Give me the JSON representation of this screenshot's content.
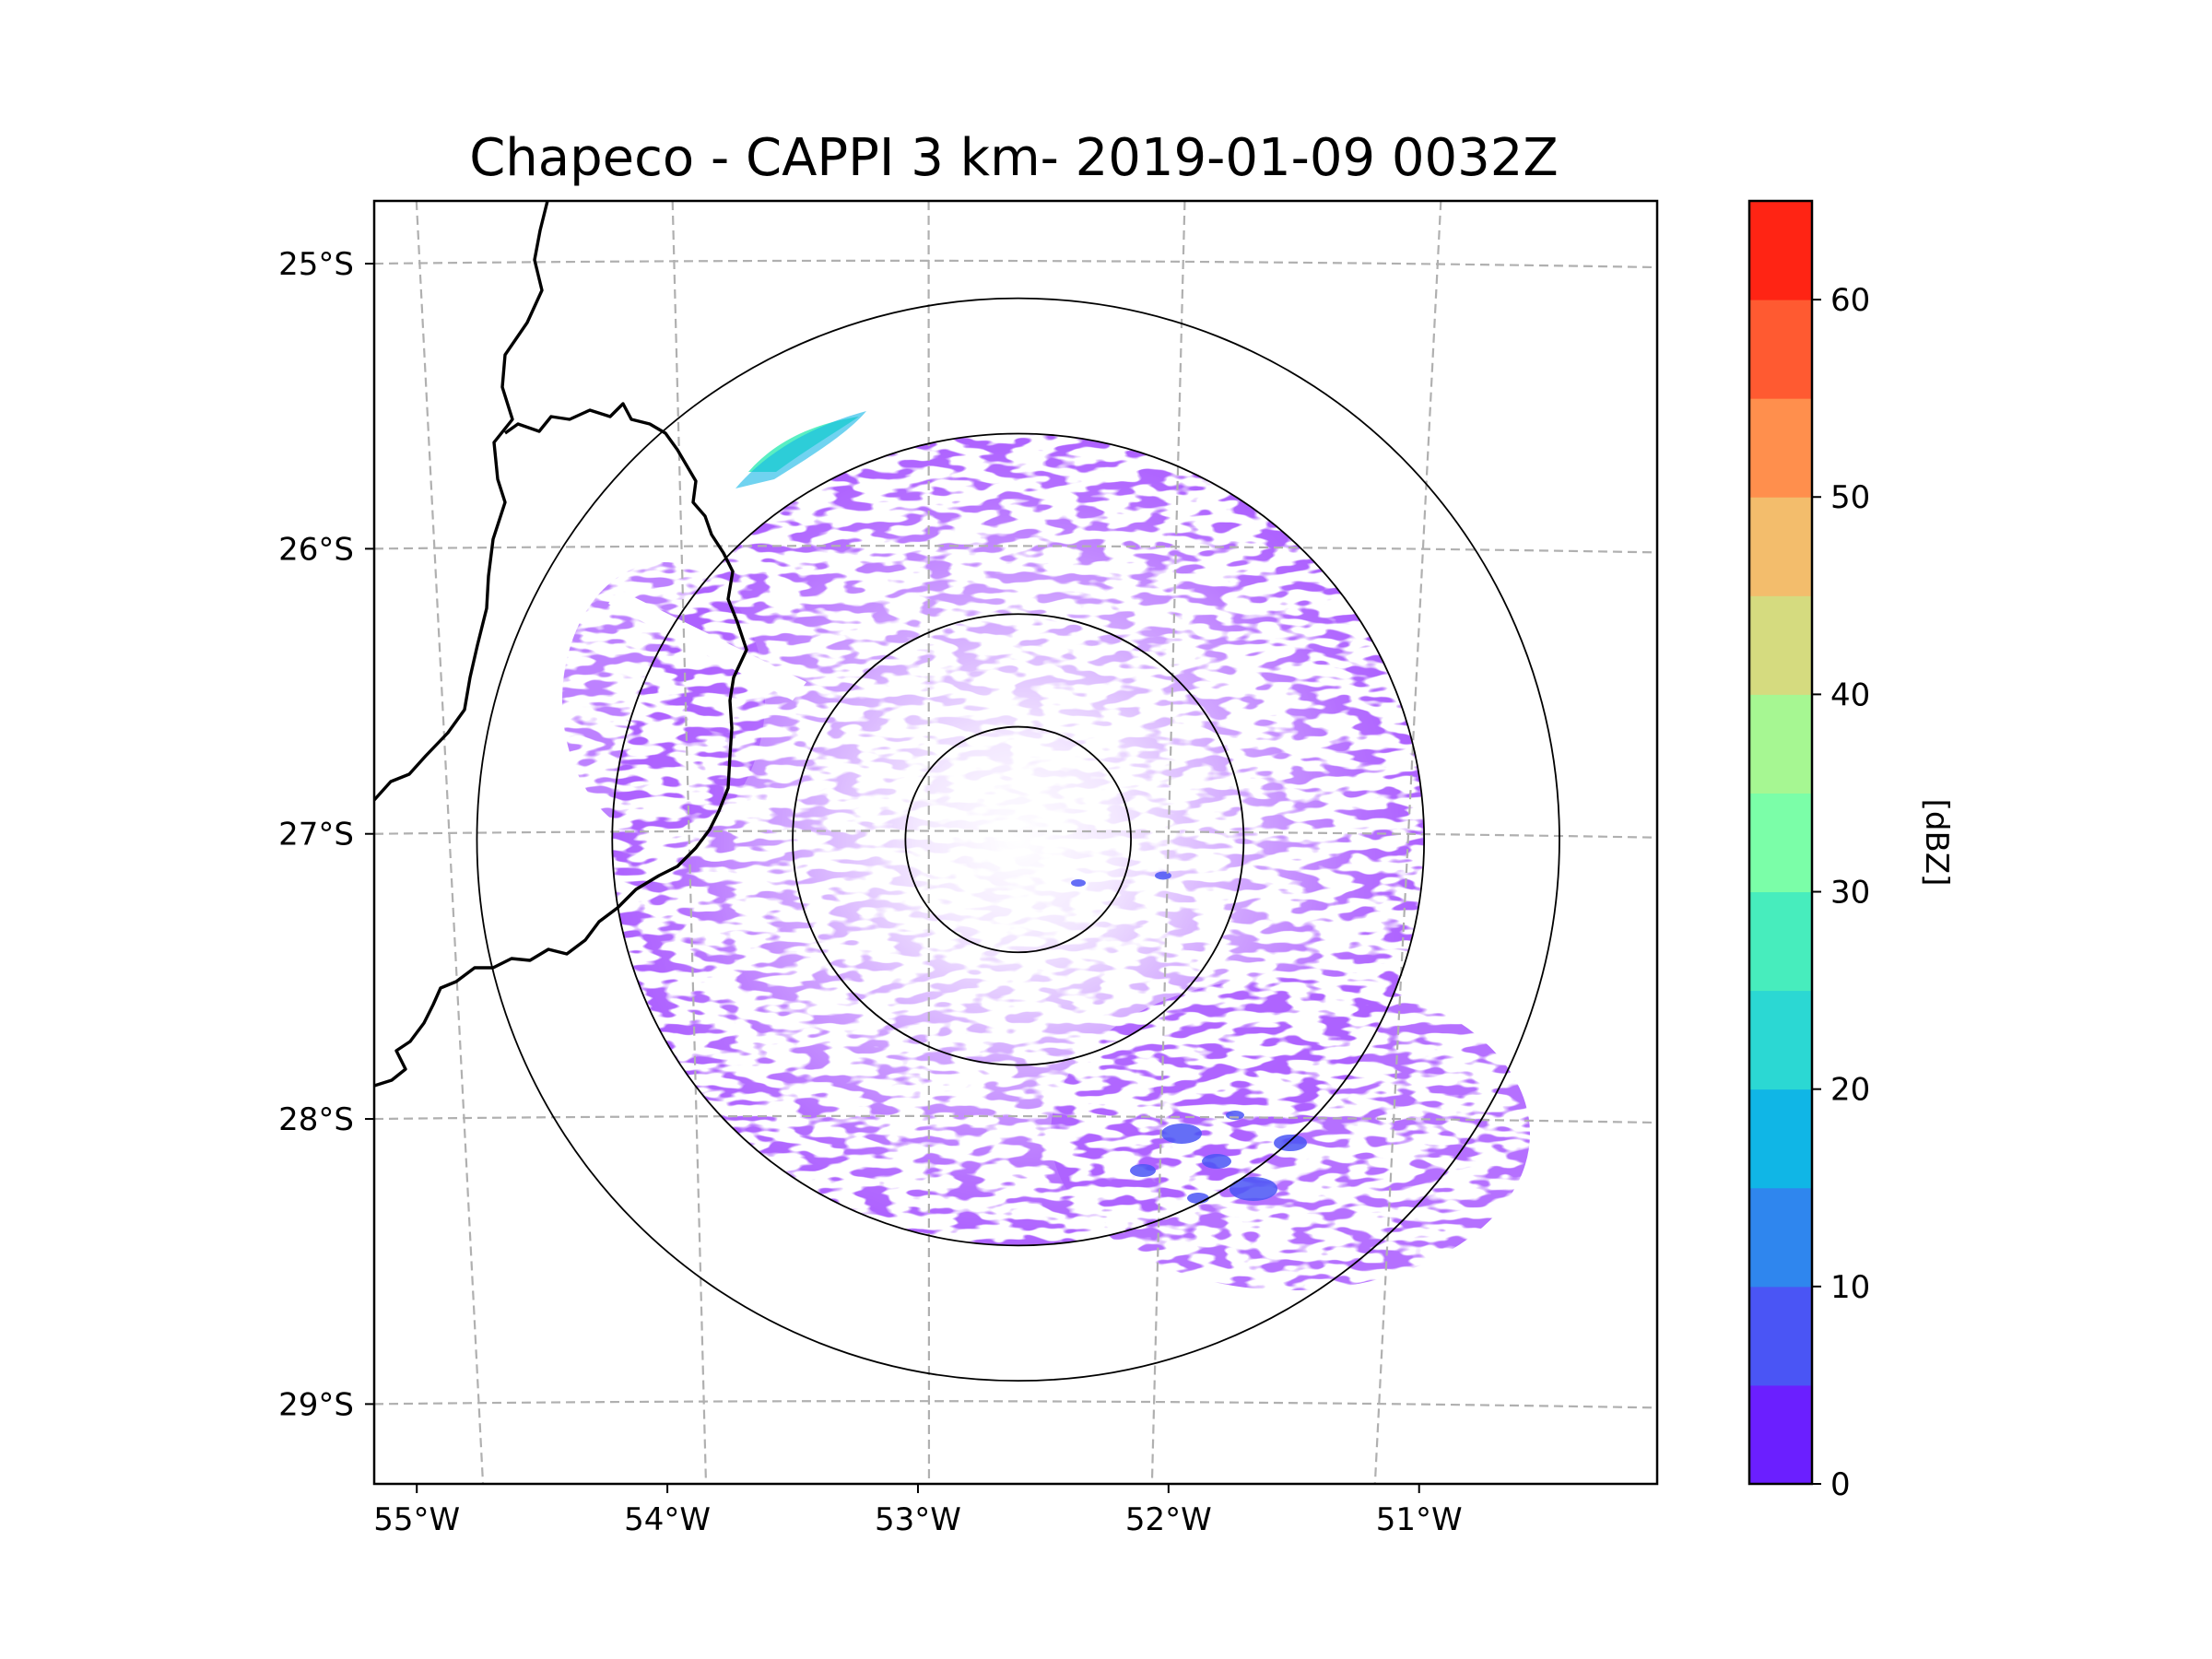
{
  "chart_data": {
    "type": "radar_ppi_map",
    "title": "Chapeco - CAPPI 3 km- 2019-01-09 0032Z",
    "radar_center": {
      "lon": -52.6,
      "lat": -27.02
    },
    "range_rings_deg": [
      0.45,
      0.9,
      1.62,
      2.16
    ],
    "xlim": [
      -55.17,
      -50.05
    ],
    "ylim": [
      -29.28,
      -24.78
    ],
    "lon_ticks": [
      -55,
      -54,
      -53,
      -52,
      -51
    ],
    "lon_tick_labels": [
      "55°W",
      "54°W",
      "53°W",
      "52°W",
      "51°W"
    ],
    "lat_ticks": [
      -25,
      -26,
      -27,
      -28,
      -29
    ],
    "lat_tick_labels": [
      "25°S",
      "26°S",
      "27°S",
      "28°S",
      "29°S"
    ],
    "gridlines": true,
    "colorbar": {
      "label": "[dBZ]",
      "min": 0,
      "max": 65,
      "step": 5,
      "ticks": [
        0,
        10,
        20,
        30,
        40,
        50,
        60
      ],
      "tick_labels": [
        "0",
        "10",
        "20",
        "30",
        "40",
        "50",
        "60"
      ],
      "colors": [
        "#6b1fff",
        "#4a55f5",
        "#2f86ee",
        "#10b6e6",
        "#2bd8d3",
        "#47edbd",
        "#7bfea8",
        "#a6f792",
        "#d5db7f",
        "#f3bd6c",
        "#ff8f4d",
        "#ff5a31",
        "#ff2414"
      ]
    },
    "echo_sectors": [
      {
        "name": "light-echo-field",
        "dbz": 2,
        "density": "dense",
        "region": "annulus 0.45-1.62 deg, heavier south-east"
      },
      {
        "name": "strong-echo-north-west",
        "dbz": 25,
        "density": "small patch",
        "region": "north-west edge near 26°S 53.5°W"
      },
      {
        "name": "moderate-echo-south-east",
        "dbz": 8,
        "density": "scattered",
        "region": "south-east 27.5-28.5°S 51-52°W"
      }
    ]
  }
}
